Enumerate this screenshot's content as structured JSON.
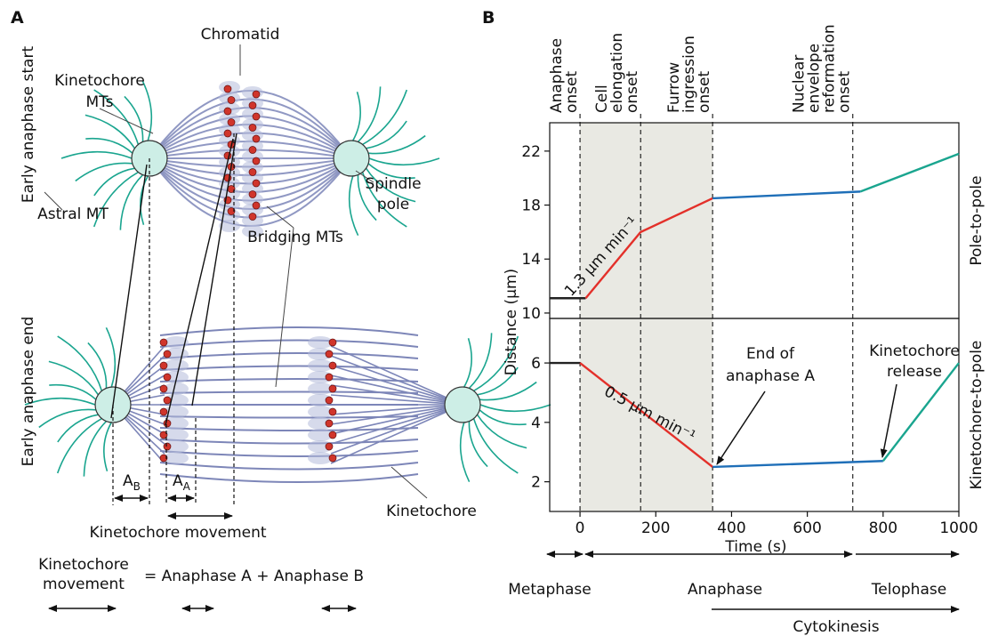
{
  "panel_a": {
    "letter": "A",
    "chromatid": "Chromatid",
    "kinetochore_mts": [
      "Kinetochore",
      "MTs"
    ],
    "start_label": "Early anaphase start",
    "end_label": "Early anaphase end",
    "astral_mt": "Astral MT",
    "spindle_pole": [
      "Spindle",
      "pole"
    ],
    "bridging_mts": "Bridging MTs",
    "kinetochore": "Kinetochore",
    "a_b": {
      "main": "A",
      "sub": "B"
    },
    "a_a": {
      "main": "A",
      "sub": "A"
    },
    "movement": "Kinetochore movement",
    "equation": {
      "lhs": [
        "Kinetochore",
        "movement"
      ],
      "rhs": "= Anaphase A + Anaphase B"
    }
  },
  "panel_b": {
    "letter": "B",
    "phases": [
      "Metaphase",
      "Anaphase",
      "Telophase",
      "Cytokinesis"
    ]
  },
  "chart_data": [
    {
      "type": "line",
      "panel_label": "Pole-to-pole",
      "xlim": [
        -80,
        1000
      ],
      "ylim": [
        9.6,
        24.1
      ],
      "yticks": [
        10,
        14,
        18,
        22
      ],
      "events": [
        {
          "x": 0,
          "label": [
            "Anaphase",
            "onset"
          ]
        },
        {
          "x": 160,
          "label": [
            "Cell",
            "elongation",
            "onset"
          ]
        },
        {
          "x": 350,
          "label": [
            "Furrow",
            "ingression",
            "onset"
          ]
        },
        {
          "x": 720,
          "label": [
            "Nuclear",
            "envelope",
            "reformation",
            "onset"
          ]
        }
      ],
      "series": [
        {
          "color": "#222222",
          "x": [
            -80,
            15
          ],
          "values": [
            11.1,
            11.1
          ]
        },
        {
          "color": "#e3302a",
          "x": [
            15,
            160,
            350
          ],
          "values": [
            11.1,
            16,
            18.5
          ]
        },
        {
          "color": "#1f6fb8",
          "x": [
            350,
            740
          ],
          "values": [
            18.5,
            19
          ]
        },
        {
          "color": "#1aa58f",
          "x": [
            740,
            1000
          ],
          "values": [
            19,
            21.8
          ]
        }
      ],
      "annotations": [
        "1.3 μm min⁻¹"
      ]
    },
    {
      "type": "line",
      "panel_label": "Kinetochore-to-pole",
      "x_label": "Time (s)",
      "y_label": "Distance (μm)",
      "xlim": [
        -80,
        1000
      ],
      "xticks": [
        0,
        200,
        400,
        600,
        800,
        1000
      ],
      "ylim": [
        1,
        7.5
      ],
      "yticks": [
        2,
        4,
        6
      ],
      "series": [
        {
          "color": "#222222",
          "x": [
            -80,
            0
          ],
          "values": [
            6,
            6
          ]
        },
        {
          "color": "#e3302a",
          "x": [
            0,
            350
          ],
          "values": [
            6,
            2.5
          ]
        },
        {
          "color": "#1f6fb8",
          "x": [
            350,
            800
          ],
          "values": [
            2.5,
            2.7
          ]
        },
        {
          "color": "#1aa58f",
          "x": [
            800,
            1000
          ],
          "values": [
            2.7,
            6
          ]
        }
      ],
      "annotations": [
        "0.5 μm min⁻¹",
        [
          "End of",
          "anaphase A"
        ],
        [
          "Kinetochore",
          "release"
        ]
      ]
    }
  ]
}
